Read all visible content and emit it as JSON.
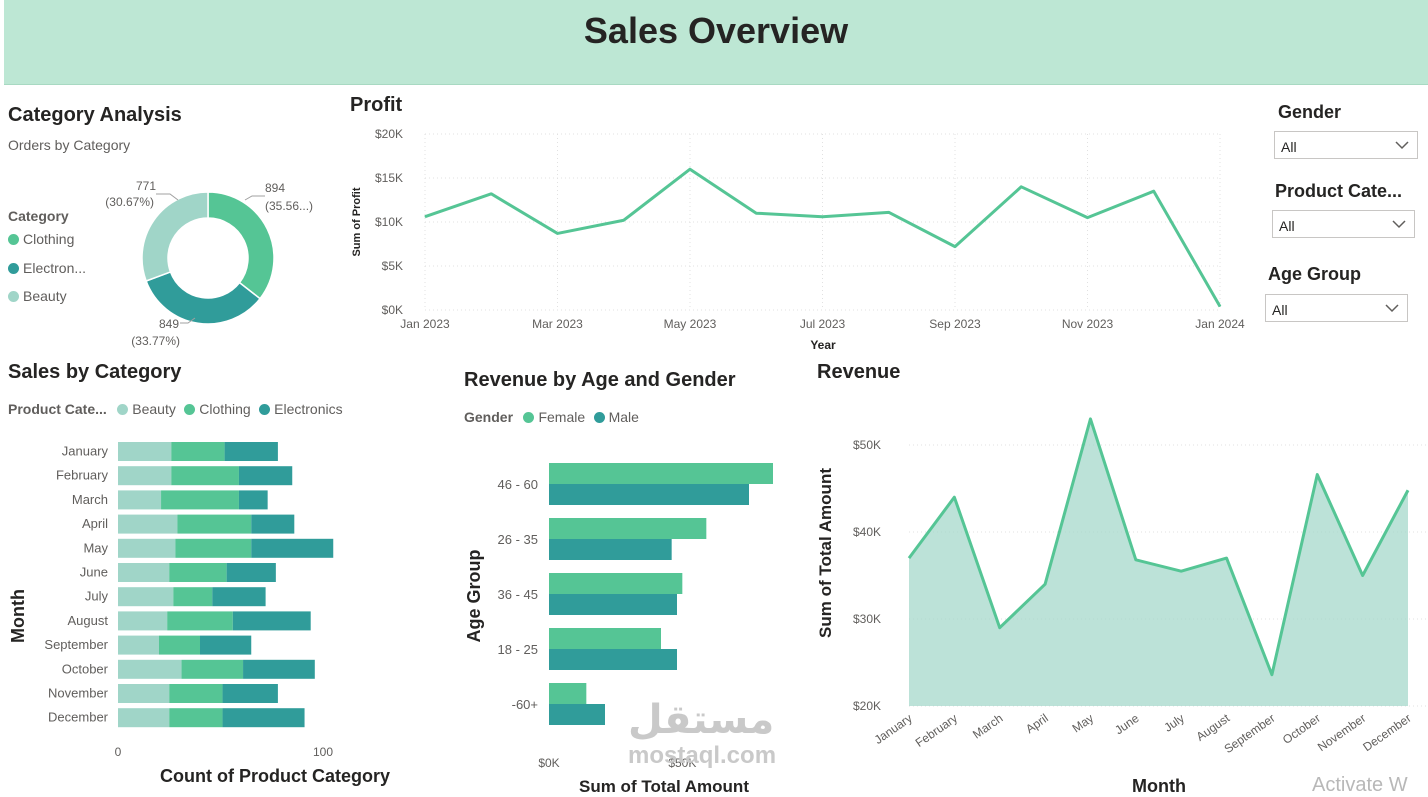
{
  "header": {
    "title": "Sales Overview"
  },
  "category_analysis": {
    "title": "Category Analysis",
    "subtitle": "Orders by Category",
    "legend_title": "Category",
    "legend": [
      "Clothing",
      "Electron...",
      "Beauty"
    ],
    "labels": {
      "clothing_value": "894",
      "clothing_pct": "(35.56...)",
      "electronics_value": "849",
      "electronics_pct": "(33.77%)",
      "beauty_value": "771",
      "beauty_pct": "(30.67%)"
    }
  },
  "profit": {
    "title": "Profit",
    "ylabel": "Sum of Profit",
    "xlabel": "Year"
  },
  "sales_by_category": {
    "title": "Sales by Category",
    "legend_title": "Product Cate...",
    "legend": [
      "Beauty",
      "Clothing",
      "Electronics"
    ],
    "ylabel": "Month",
    "xlabel": "Count of Product Category"
  },
  "revenue_age_gender": {
    "title": "Revenue by Age and Gender",
    "legend_title": "Gender",
    "legend": [
      "Female",
      "Male"
    ],
    "ylabel": "Age Group",
    "xlabel": "Sum of Total Amount"
  },
  "revenue": {
    "title": "Revenue",
    "ylabel": "Sum of Total Amount",
    "xlabel": "Month"
  },
  "slicers": {
    "gender": {
      "title": "Gender",
      "value": "All"
    },
    "product_category": {
      "title": "Product Cate...",
      "value": "All"
    },
    "age_group": {
      "title": "Age Group",
      "value": "All"
    }
  },
  "watermark": {
    "text": "مستقل",
    "sub": "mostaql.com"
  },
  "activate_text": "Activate W",
  "colors": {
    "beauty": "#a0d5c8",
    "clothing": "#55c595",
    "electronics": "#309c9a",
    "header": "#bde7d4"
  },
  "chart_data": [
    {
      "type": "pie",
      "title": "Orders by Category",
      "categories": [
        "Clothing",
        "Electronics",
        "Beauty"
      ],
      "values": [
        894,
        849,
        771
      ],
      "percents": [
        35.56,
        33.77,
        30.67
      ]
    },
    {
      "type": "line",
      "title": "Profit",
      "xlabel": "Year",
      "ylabel": "Sum of Profit",
      "x": [
        "2023-01",
        "2023-02",
        "2023-03",
        "2023-04",
        "2023-05",
        "2023-06",
        "2023-07",
        "2023-08",
        "2023-09",
        "2023-10",
        "2023-11",
        "2023-12",
        "2024-01"
      ],
      "x_ticks": [
        "Jan 2023",
        "Mar 2023",
        "May 2023",
        "Jul 2023",
        "Sep 2023",
        "Nov 2023",
        "Jan 2024"
      ],
      "y_ticks": [
        "$0K",
        "$5K",
        "$10K",
        "$15K",
        "$20K"
      ],
      "values": [
        10600,
        13200,
        8700,
        10200,
        16000,
        11000,
        10600,
        11100,
        7200,
        14000,
        10500,
        13500,
        400
      ],
      "ylim": [
        0,
        20000
      ],
      "grid": true
    },
    {
      "type": "bar",
      "title": "Sales by Category",
      "orientation": "horizontal",
      "stacked": true,
      "categories": [
        "January",
        "February",
        "March",
        "April",
        "May",
        "June",
        "July",
        "August",
        "September",
        "October",
        "November",
        "December"
      ],
      "series": [
        {
          "name": "Beauty",
          "values": [
            26,
            26,
            21,
            29,
            28,
            25,
            27,
            24,
            20,
            31,
            25,
            25
          ]
        },
        {
          "name": "Clothing",
          "values": [
            26,
            33,
            38,
            36,
            37,
            28,
            19,
            32,
            20,
            30,
            26,
            26
          ]
        },
        {
          "name": "Electronics",
          "values": [
            26,
            26,
            14,
            21,
            40,
            24,
            26,
            38,
            25,
            35,
            27,
            40
          ]
        }
      ],
      "x_ticks": [
        "0",
        "100"
      ],
      "xlim": [
        0,
        100
      ],
      "xlabel": "Count of Product Category",
      "ylabel": "Month"
    },
    {
      "type": "bar",
      "title": "Revenue by Age and Gender",
      "orientation": "horizontal",
      "categories": [
        "46 - 60",
        "26 - 35",
        "36 - 45",
        "18 - 25",
        "-60+"
      ],
      "series": [
        {
          "name": "Female",
          "values": [
            84000,
            59000,
            50000,
            42000,
            14000
          ]
        },
        {
          "name": "Male",
          "values": [
            75000,
            46000,
            48000,
            48000,
            21000
          ]
        }
      ],
      "x_ticks": [
        "$0K",
        "$50K"
      ],
      "xlabel": "Sum of Total Amount",
      "ylabel": "Age Group"
    },
    {
      "type": "area",
      "title": "Revenue",
      "xlabel": "Month",
      "ylabel": "Sum of Total Amount",
      "categories": [
        "January",
        "February",
        "March",
        "April",
        "May",
        "June",
        "July",
        "August",
        "September",
        "October",
        "November",
        "December"
      ],
      "values": [
        37000,
        44000,
        29000,
        34000,
        53000,
        36800,
        35500,
        37000,
        23600,
        46600,
        35000,
        44800
      ],
      "y_ticks": [
        "$20K",
        "$30K",
        "$40K",
        "$50K"
      ],
      "ylim": [
        20000,
        55000
      ],
      "grid": true
    }
  ]
}
